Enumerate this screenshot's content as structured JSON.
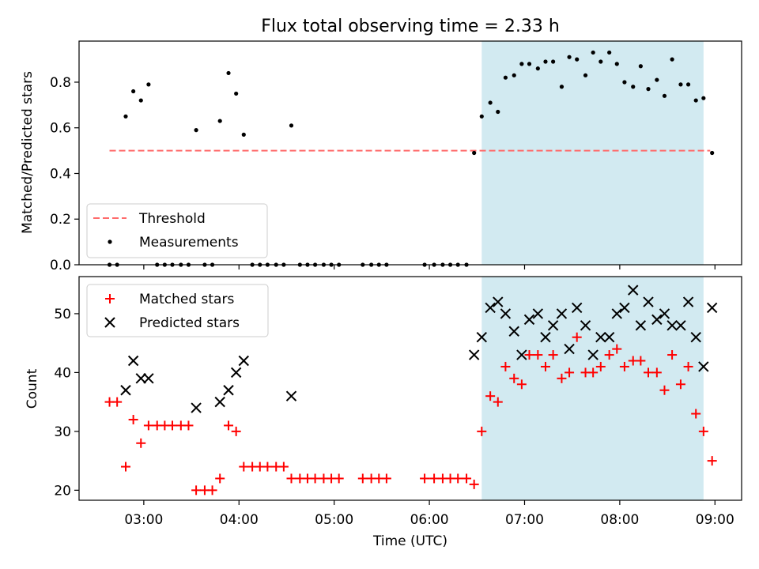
{
  "chart_data": [
    {
      "type": "scatter",
      "title": "Flux total observing time = 2.33 h",
      "xlabel": "",
      "ylabel": "Matched/Predicted stars",
      "ylim": [
        0,
        0.98
      ],
      "yticks": [
        0.0,
        0.2,
        0.4,
        0.6,
        0.8
      ],
      "ytick_labels": [
        "0.0",
        "0.2",
        "0.4",
        "0.6",
        "0.8"
      ],
      "x_unit": "hours UTC",
      "xlim": [
        2.32,
        9.28
      ],
      "xticks": [
        3,
        4,
        5,
        6,
        7,
        8,
        9
      ],
      "xtick_labels": [
        "03:00",
        "04:00",
        "05:00",
        "06:00",
        "07:00",
        "08:00",
        "09:00"
      ],
      "shaded_region": {
        "x_start": 6.55,
        "x_end": 8.88,
        "color": "#add8e6"
      },
      "threshold": {
        "name": "Threshold",
        "value": 0.5,
        "x_range": [
          2.64,
          8.95
        ],
        "color": "#ff6b6b",
        "style": "dashed"
      },
      "legend": {
        "position": "lower-left",
        "entries": [
          "Threshold",
          "Measurements"
        ]
      },
      "series": [
        {
          "name": "Measurements",
          "marker": "dot",
          "color": "#000000",
          "points": [
            [
              2.64,
              0
            ],
            [
              2.72,
              0
            ],
            [
              2.81,
              0.65
            ],
            [
              2.89,
              0.76
            ],
            [
              2.97,
              0.72
            ],
            [
              3.05,
              0.79
            ],
            [
              3.14,
              0
            ],
            [
              3.22,
              0
            ],
            [
              3.3,
              0
            ],
            [
              3.39,
              0
            ],
            [
              3.47,
              0
            ],
            [
              3.55,
              0.59
            ],
            [
              3.64,
              0
            ],
            [
              3.72,
              0
            ],
            [
              3.8,
              0.63
            ],
            [
              3.89,
              0.84
            ],
            [
              3.97,
              0.75
            ],
            [
              4.05,
              0.57
            ],
            [
              4.14,
              0
            ],
            [
              4.22,
              0
            ],
            [
              4.3,
              0
            ],
            [
              4.39,
              0
            ],
            [
              4.47,
              0
            ],
            [
              4.55,
              0.61
            ],
            [
              4.64,
              0
            ],
            [
              4.72,
              0
            ],
            [
              4.8,
              0
            ],
            [
              4.89,
              0
            ],
            [
              4.97,
              0
            ],
            [
              5.05,
              0
            ],
            [
              5.3,
              0
            ],
            [
              5.39,
              0
            ],
            [
              5.47,
              0
            ],
            [
              5.55,
              0
            ],
            [
              5.95,
              0
            ],
            [
              6.05,
              0
            ],
            [
              6.14,
              0
            ],
            [
              6.22,
              0
            ],
            [
              6.3,
              0
            ],
            [
              6.39,
              0
            ],
            [
              6.47,
              0.49
            ],
            [
              6.55,
              0.65
            ],
            [
              6.64,
              0.71
            ],
            [
              6.72,
              0.67
            ],
            [
              6.8,
              0.82
            ],
            [
              6.89,
              0.83
            ],
            [
              6.97,
              0.88
            ],
            [
              7.05,
              0.88
            ],
            [
              7.14,
              0.86
            ],
            [
              7.22,
              0.89
            ],
            [
              7.3,
              0.89
            ],
            [
              7.39,
              0.78
            ],
            [
              7.47,
              0.91
            ],
            [
              7.55,
              0.9
            ],
            [
              7.64,
              0.83
            ],
            [
              7.72,
              0.93
            ],
            [
              7.8,
              0.89
            ],
            [
              7.89,
              0.93
            ],
            [
              7.97,
              0.88
            ],
            [
              8.05,
              0.8
            ],
            [
              8.14,
              0.78
            ],
            [
              8.22,
              0.87
            ],
            [
              8.3,
              0.77
            ],
            [
              8.39,
              0.81
            ],
            [
              8.47,
              0.74
            ],
            [
              8.55,
              0.9
            ],
            [
              8.64,
              0.79
            ],
            [
              8.72,
              0.79
            ],
            [
              8.8,
              0.72
            ],
            [
              8.88,
              0.73
            ],
            [
              8.97,
              0.49
            ]
          ]
        }
      ]
    },
    {
      "type": "scatter",
      "title": "",
      "xlabel": "Time (UTC)",
      "ylabel": "Count",
      "ylim": [
        18.3,
        56.3
      ],
      "yticks": [
        20,
        30,
        40,
        50
      ],
      "ytick_labels": [
        "20",
        "30",
        "40",
        "50"
      ],
      "x_unit": "hours UTC",
      "xlim": [
        2.32,
        9.28
      ],
      "xticks": [
        3,
        4,
        5,
        6,
        7,
        8,
        9
      ],
      "xtick_labels": [
        "03:00",
        "04:00",
        "05:00",
        "06:00",
        "07:00",
        "08:00",
        "09:00"
      ],
      "shaded_region": {
        "x_start": 6.55,
        "x_end": 8.88,
        "color": "#add8e6"
      },
      "legend": {
        "position": "top-left",
        "entries": [
          "Matched stars",
          "Predicted stars"
        ]
      },
      "series": [
        {
          "name": "Matched stars",
          "marker": "plus",
          "color": "#ff0000",
          "points": [
            [
              2.64,
              35
            ],
            [
              2.72,
              35
            ],
            [
              2.81,
              24
            ],
            [
              2.89,
              32
            ],
            [
              2.97,
              28
            ],
            [
              3.05,
              31
            ],
            [
              3.14,
              31
            ],
            [
              3.22,
              31
            ],
            [
              3.3,
              31
            ],
            [
              3.39,
              31
            ],
            [
              3.47,
              31
            ],
            [
              3.55,
              20
            ],
            [
              3.64,
              20
            ],
            [
              3.72,
              20
            ],
            [
              3.8,
              22
            ],
            [
              3.89,
              31
            ],
            [
              3.97,
              30
            ],
            [
              4.05,
              24
            ],
            [
              4.14,
              24
            ],
            [
              4.22,
              24
            ],
            [
              4.3,
              24
            ],
            [
              4.39,
              24
            ],
            [
              4.47,
              24
            ],
            [
              4.55,
              22
            ],
            [
              4.64,
              22
            ],
            [
              4.72,
              22
            ],
            [
              4.8,
              22
            ],
            [
              4.89,
              22
            ],
            [
              4.97,
              22
            ],
            [
              5.05,
              22
            ],
            [
              5.3,
              22
            ],
            [
              5.39,
              22
            ],
            [
              5.47,
              22
            ],
            [
              5.55,
              22
            ],
            [
              5.95,
              22
            ],
            [
              6.05,
              22
            ],
            [
              6.14,
              22
            ],
            [
              6.22,
              22
            ],
            [
              6.3,
              22
            ],
            [
              6.39,
              22
            ],
            [
              6.47,
              21
            ],
            [
              6.55,
              30
            ],
            [
              6.64,
              36
            ],
            [
              6.72,
              35
            ],
            [
              6.8,
              41
            ],
            [
              6.89,
              39
            ],
            [
              6.97,
              38
            ],
            [
              7.05,
              43
            ],
            [
              7.14,
              43
            ],
            [
              7.22,
              41
            ],
            [
              7.3,
              43
            ],
            [
              7.39,
              39
            ],
            [
              7.47,
              40
            ],
            [
              7.55,
              46
            ],
            [
              7.64,
              40
            ],
            [
              7.72,
              40
            ],
            [
              7.8,
              41
            ],
            [
              7.89,
              43
            ],
            [
              7.97,
              44
            ],
            [
              8.05,
              41
            ],
            [
              8.14,
              42
            ],
            [
              8.22,
              42
            ],
            [
              8.3,
              40
            ],
            [
              8.39,
              40
            ],
            [
              8.47,
              37
            ],
            [
              8.55,
              43
            ],
            [
              8.64,
              38
            ],
            [
              8.72,
              41
            ],
            [
              8.8,
              33
            ],
            [
              8.88,
              30
            ],
            [
              8.97,
              25
            ]
          ]
        },
        {
          "name": "Predicted stars",
          "marker": "x",
          "color": "#000000",
          "points": [
            [
              2.81,
              37
            ],
            [
              2.89,
              42
            ],
            [
              2.97,
              39
            ],
            [
              3.05,
              39
            ],
            [
              3.55,
              34
            ],
            [
              3.8,
              35
            ],
            [
              3.89,
              37
            ],
            [
              3.97,
              40
            ],
            [
              4.05,
              42
            ],
            [
              4.55,
              36
            ],
            [
              6.47,
              43
            ],
            [
              6.55,
              46
            ],
            [
              6.64,
              51
            ],
            [
              6.72,
              52
            ],
            [
              6.8,
              50
            ],
            [
              6.89,
              47
            ],
            [
              6.97,
              43
            ],
            [
              7.05,
              49
            ],
            [
              7.14,
              50
            ],
            [
              7.22,
              46
            ],
            [
              7.3,
              48
            ],
            [
              7.39,
              50
            ],
            [
              7.47,
              44
            ],
            [
              7.55,
              51
            ],
            [
              7.64,
              48
            ],
            [
              7.72,
              43
            ],
            [
              7.8,
              46
            ],
            [
              7.89,
              46
            ],
            [
              7.97,
              50
            ],
            [
              8.05,
              51
            ],
            [
              8.14,
              54
            ],
            [
              8.22,
              48
            ],
            [
              8.3,
              52
            ],
            [
              8.39,
              49
            ],
            [
              8.47,
              50
            ],
            [
              8.55,
              48
            ],
            [
              8.64,
              48
            ],
            [
              8.72,
              52
            ],
            [
              8.8,
              46
            ],
            [
              8.88,
              41
            ],
            [
              8.97,
              51
            ]
          ]
        }
      ]
    }
  ]
}
